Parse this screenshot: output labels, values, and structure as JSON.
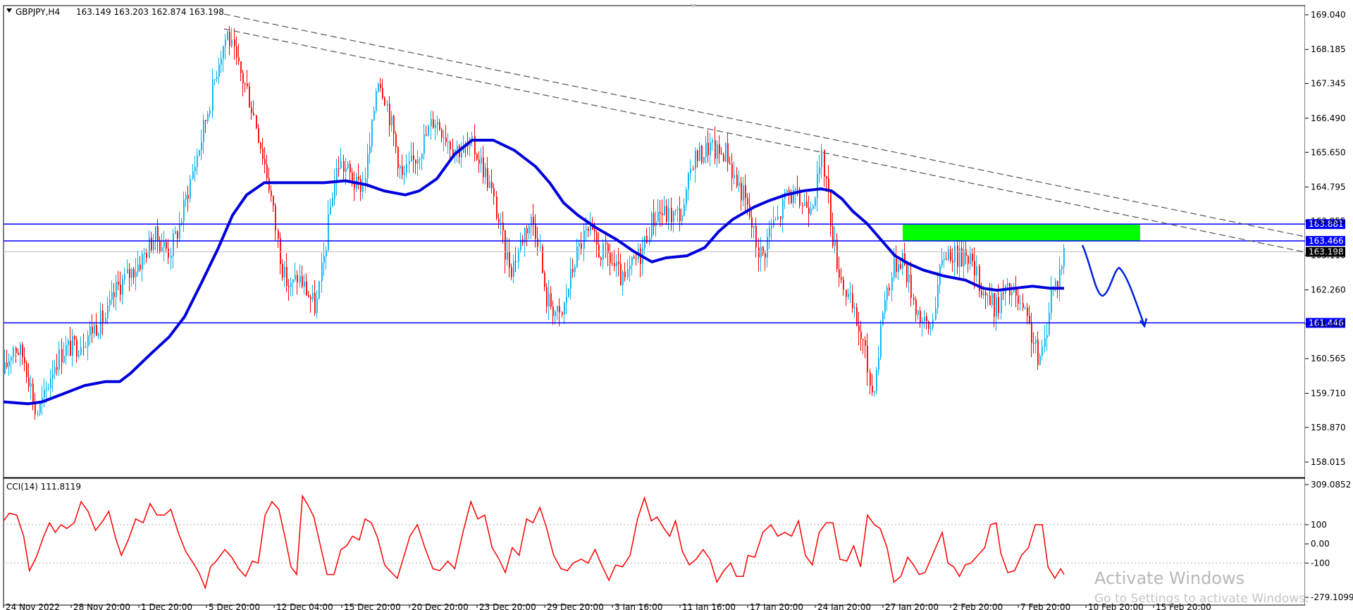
{
  "header": {
    "symbol": "GBPJPY,H4",
    "ohlc": "163.149 163.203 162.874 163.198"
  },
  "price_axis": {
    "ticks": [
      "169.040",
      "168.185",
      "167.345",
      "166.490",
      "165.650",
      "164.795",
      "163.955",
      "163.110",
      "162.260",
      "161.420",
      "160.565",
      "159.710",
      "158.870",
      "158.015"
    ]
  },
  "levels": [
    {
      "label": "163.881",
      "value": 163.881,
      "color": "#0000ff"
    },
    {
      "label": "163.466",
      "value": 163.466,
      "color": "#0000ff"
    },
    {
      "label": "161.446",
      "value": 161.446,
      "color": "#0000ff"
    }
  ],
  "current_price": {
    "label": "163.198",
    "value": 163.198,
    "color": "#000000"
  },
  "zone": {
    "low": 163.466,
    "high": 163.881,
    "color": "#00ff00"
  },
  "indicator": {
    "title": "CCI(14) 111.8119",
    "ticks": [
      "309.0852",
      "100",
      "0.00",
      "-100",
      "-279.1099"
    ],
    "color": "#ff0000"
  },
  "time_axis": {
    "ticks": [
      "24 Nov 2022",
      "28 Nov 20:00",
      "1 Dec 20:00",
      "5 Dec 20:00",
      "12 Dec 04:00",
      "15 Dec 20:00",
      "20 Dec 20:00",
      "23 Dec 20:00",
      "29 Dec 20:00",
      "3 Jan 16:00",
      "11 Jan 16:00",
      "17 Jan 20:00",
      "24 Jan 20:00",
      "27 Jan 20:00",
      "2 Feb 20:00",
      "7 Feb 20:00",
      "10 Feb 20:00",
      "15 Feb 20:00"
    ]
  },
  "watermark": {
    "line1": "Activate Windows",
    "line2": "Go to Settings to activate Windows."
  },
  "colors": {
    "bull": "#00b0f0",
    "bear": "#ff0000",
    "ma": "#0000dd",
    "trend": "#555555"
  }
}
